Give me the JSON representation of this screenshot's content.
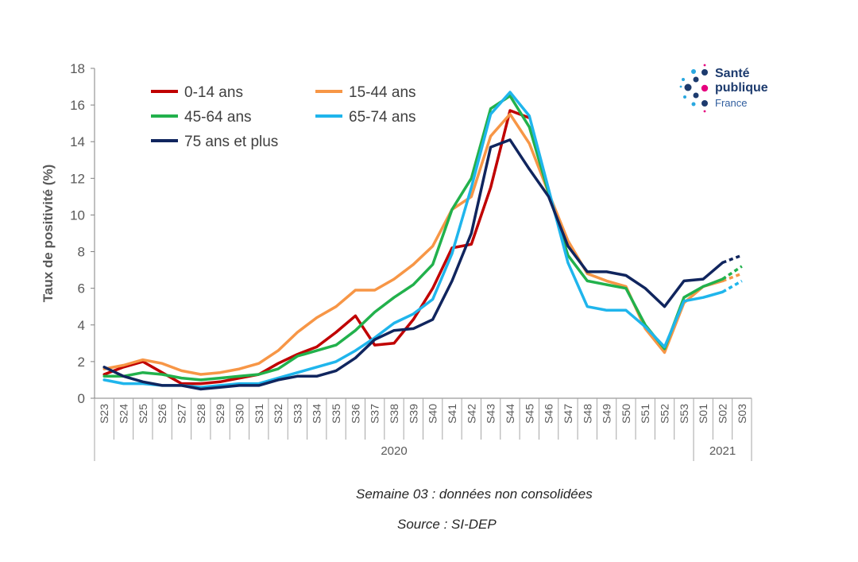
{
  "chart_data": {
    "type": "line",
    "ylabel": "Taux de positivité  (%)",
    "xlabel": "",
    "ylim": [
      0,
      18
    ],
    "yticks": [
      0,
      2,
      4,
      6,
      8,
      10,
      12,
      14,
      16,
      18
    ],
    "categories": [
      "S23",
      "S24",
      "S25",
      "S26",
      "S27",
      "S28",
      "S29",
      "S30",
      "S31",
      "S32",
      "S33",
      "S34",
      "S35",
      "S36",
      "S37",
      "S38",
      "S39",
      "S40",
      "S41",
      "S42",
      "S43",
      "S44",
      "S45",
      "S46",
      "S47",
      "S48",
      "S49",
      "S50",
      "S51",
      "S52",
      "S53",
      "S01",
      "S02",
      "S03"
    ],
    "year_groups": [
      {
        "label": "2020",
        "start": 0,
        "end": 30
      },
      {
        "label": "2021",
        "start": 31,
        "end": 33
      }
    ],
    "dashed_last_segment": true,
    "legend_placement": "top-left",
    "grid": false,
    "series": [
      {
        "name": "0-14 ans",
        "color": "#c00000",
        "values": [
          1.3,
          1.7,
          2.0,
          1.4,
          0.8,
          0.8,
          0.9,
          1.1,
          1.3,
          1.9,
          2.4,
          2.8,
          3.6,
          4.5,
          2.9,
          3.0,
          4.3,
          6.0,
          8.2,
          8.4,
          11.5,
          15.7,
          15.3,
          null,
          null,
          null,
          null,
          null,
          null,
          null,
          null,
          null,
          null,
          null
        ]
      },
      {
        "name": "15-44 ans",
        "color": "#f79646",
        "values": [
          1.6,
          1.8,
          2.1,
          1.9,
          1.5,
          1.3,
          1.4,
          1.6,
          1.9,
          2.6,
          3.6,
          4.4,
          5.0,
          5.9,
          5.9,
          6.5,
          7.3,
          8.3,
          10.3,
          11.0,
          14.3,
          15.5,
          13.9,
          11.2,
          8.6,
          6.8,
          6.4,
          6.1,
          3.8,
          2.5,
          5.2,
          6.1,
          6.4,
          6.8
        ]
      },
      {
        "name": "45-64 ans",
        "color": "#22b14c",
        "values": [
          1.2,
          1.2,
          1.4,
          1.3,
          1.1,
          1.0,
          1.1,
          1.2,
          1.3,
          1.6,
          2.3,
          2.6,
          2.9,
          3.7,
          4.7,
          5.5,
          6.2,
          7.3,
          10.3,
          12.0,
          15.8,
          16.5,
          14.8,
          11.2,
          7.8,
          6.4,
          6.2,
          6.0,
          4.0,
          2.7,
          5.5,
          6.1,
          6.5,
          7.2
        ]
      },
      {
        "name": "65-74 ans",
        "color": "#1fb5ec",
        "values": [
          1.0,
          0.8,
          0.8,
          0.7,
          0.7,
          0.6,
          0.7,
          0.8,
          0.8,
          1.1,
          1.4,
          1.7,
          2.0,
          2.6,
          3.3,
          4.1,
          4.6,
          5.4,
          7.9,
          11.5,
          15.5,
          16.7,
          15.4,
          11.4,
          7.4,
          5.0,
          4.8,
          4.8,
          3.9,
          2.8,
          5.3,
          5.5,
          5.8,
          6.4
        ]
      },
      {
        "name": "75 ans et plus",
        "color": "#10255e",
        "values": [
          1.7,
          1.2,
          0.9,
          0.7,
          0.7,
          0.5,
          0.6,
          0.7,
          0.7,
          1.0,
          1.2,
          1.2,
          1.5,
          2.2,
          3.2,
          3.7,
          3.8,
          4.3,
          6.4,
          9.0,
          13.7,
          14.1,
          12.5,
          11.0,
          8.3,
          6.9,
          6.9,
          6.7,
          6.0,
          5.0,
          6.4,
          6.5,
          7.4,
          7.8
        ]
      }
    ]
  },
  "notes": {
    "line1": "Semaine 03 : données non consolidées",
    "line2": "Source : SI-DEP"
  },
  "logo": {
    "line1": "Santé",
    "line2": "publique",
    "line3": "France",
    "colors": {
      "dark": "#1d3b6e",
      "light": "#2aa8e0",
      "accent": "#e6007e"
    }
  }
}
